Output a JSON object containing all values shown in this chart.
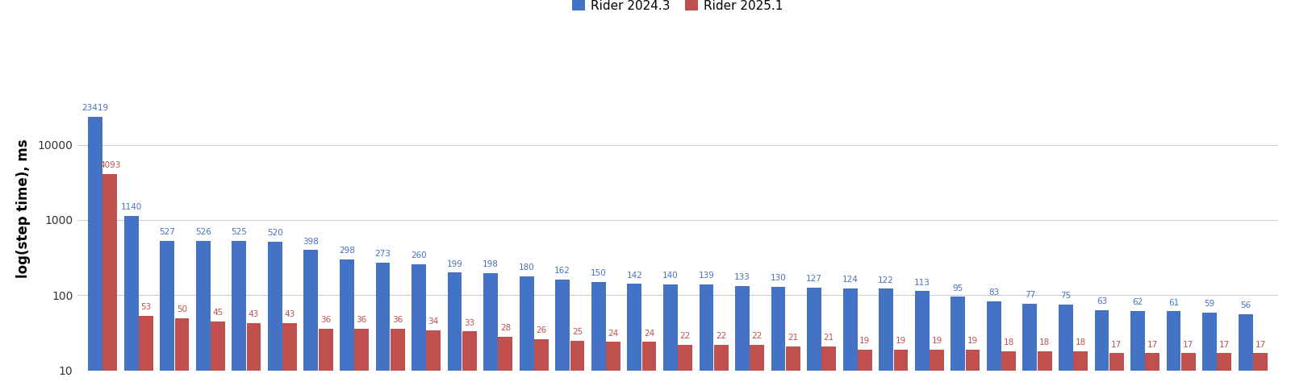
{
  "blue_values": [
    23419,
    1140,
    527,
    526,
    525,
    520,
    398,
    298,
    273,
    260,
    199,
    198,
    180,
    162,
    150,
    142,
    140,
    139,
    133,
    130,
    127,
    124,
    122,
    113,
    95,
    83,
    77,
    75,
    63,
    62,
    61,
    59,
    56
  ],
  "red_values": [
    4093,
    53,
    50,
    45,
    43,
    43,
    36,
    36,
    36,
    34,
    33,
    28,
    26,
    25,
    24,
    24,
    22,
    22,
    22,
    21,
    21,
    19,
    19,
    19,
    19,
    18,
    18,
    18,
    17,
    17,
    17,
    17,
    17
  ],
  "blue_color": "#4472C4",
  "red_color": "#C0504D",
  "ylabel": "log(step time), ms",
  "legend_blue": "Rider 2024.3",
  "legend_red": "Rider 2025.1",
  "ylim_min": 10,
  "ylim_max": 200000,
  "yticks": [
    10,
    100,
    1000,
    10000
  ],
  "ytick_labels": [
    "10",
    "100",
    "1000",
    "10000"
  ],
  "background_color": "#ffffff",
  "grid_color": "#cccccc",
  "label_fontsize": 7.5,
  "ylabel_fontsize": 12,
  "legend_fontsize": 11,
  "bar_width": 0.4,
  "bar_gap": 0.01
}
